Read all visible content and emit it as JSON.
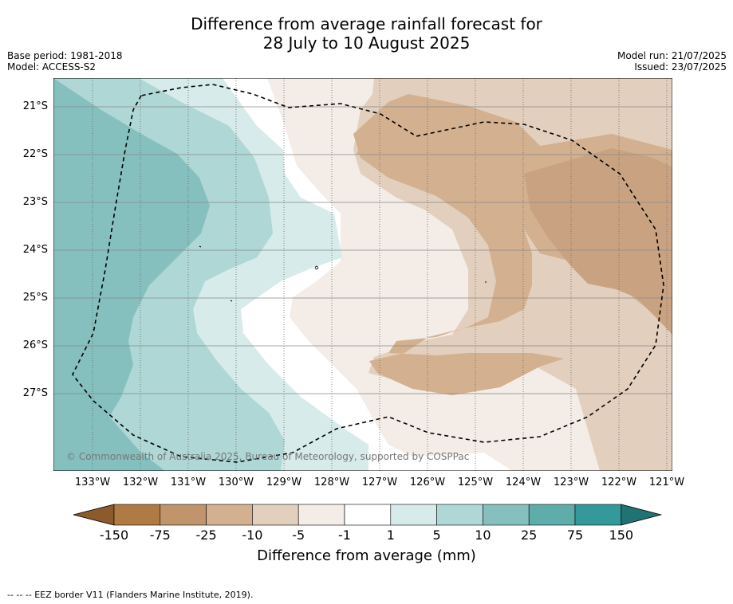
{
  "title_line1": "Difference from average rainfall forecast for",
  "title_line2": "28 July to 10 August 2025",
  "base_period": "Base period: 1981-2018",
  "model": "Model: ACCESS-S2",
  "model_run": "Model run: 21/07/2025",
  "issued": "Issued: 23/07/2025",
  "copyright": "© Commonwealth of Australia 2025, Bureau of Meteorology, supported by COSPPac",
  "lat_labels": [
    "21°S",
    "22°S",
    "23°S",
    "24°S",
    "25°S",
    "26°S",
    "27°S"
  ],
  "lon_labels": [
    "133°W",
    "132°W",
    "131°W",
    "130°W",
    "129°W",
    "128°W",
    "127°W",
    "126°W",
    "125°W",
    "124°W",
    "123°W",
    "122°W",
    "121°W"
  ],
  "colorbar": {
    "labels": [
      "-150",
      "-75",
      "-25",
      "-10",
      "-5",
      "-1",
      "1",
      "5",
      "10",
      "25",
      "75",
      "150"
    ],
    "colors": [
      "#8d5a2b",
      "#b07a44",
      "#c1956b",
      "#d3b08f",
      "#e3cfbd",
      "#f4ece6",
      "#ffffff",
      "#d6ebea",
      "#aed7d6",
      "#85c0bf",
      "#5eadab",
      "#34999a",
      "#207372"
    ],
    "title": "Difference from average (mm)"
  },
  "footnote": "--  --  -- EEZ border V11 (Flanders Marine Institute, 2019)."
}
